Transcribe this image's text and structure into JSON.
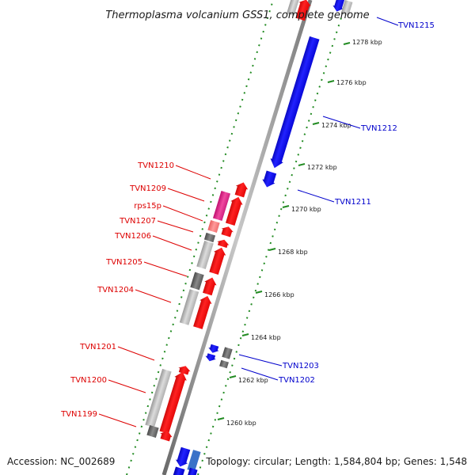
{
  "title": "Thermoplasma volcanium GSS1, complete genome",
  "footer": {
    "accession": "Accession: NC_002689",
    "summary": "Topology: circular; Length: 1,584,804 bp; Genes: 1,548"
  },
  "colors": {
    "backbone": "#8a8a8a",
    "tick": "#228b22",
    "forward_label": "#0000cc",
    "reverse_label": "#dd0000",
    "forward_gene": "#0000ff",
    "reverse_gene": "#ff0000",
    "pseudo_gray_light": "#bdbdbd",
    "pseudo_gray_dark": "#707070",
    "rna_pink": "#e8308a"
  },
  "coordinate_ticks": [
    {
      "kbp": 1278,
      "label": "1278 kbp"
    },
    {
      "kbp": 1276,
      "label": "1276 kbp"
    },
    {
      "kbp": 1274,
      "label": "1274 kbp"
    },
    {
      "kbp": 1272,
      "label": "1272 kbp"
    },
    {
      "kbp": 1270,
      "label": "1270 kbp"
    },
    {
      "kbp": 1268,
      "label": "1268 kbp"
    },
    {
      "kbp": 1266,
      "label": "1266 kbp"
    },
    {
      "kbp": 1264,
      "label": "1264 kbp"
    },
    {
      "kbp": 1262,
      "label": "1262 kbp"
    },
    {
      "kbp": 1260,
      "label": "1260 kbp"
    }
  ],
  "forward_labels": [
    {
      "text": "TVN1215"
    },
    {
      "text": "TVN1212"
    },
    {
      "text": "TVN1211"
    },
    {
      "text": "TVN1203"
    },
    {
      "text": "TVN1202"
    }
  ],
  "reverse_labels": [
    {
      "text": "TVN1210"
    },
    {
      "text": "TVN1209"
    },
    {
      "text": "rps15p"
    },
    {
      "text": "TVN1207"
    },
    {
      "text": "TVN1206"
    },
    {
      "text": "TVN1205"
    },
    {
      "text": "TVN1204"
    },
    {
      "text": "TVN1201"
    },
    {
      "text": "TVN1200"
    },
    {
      "text": "TVN1199"
    }
  ]
}
